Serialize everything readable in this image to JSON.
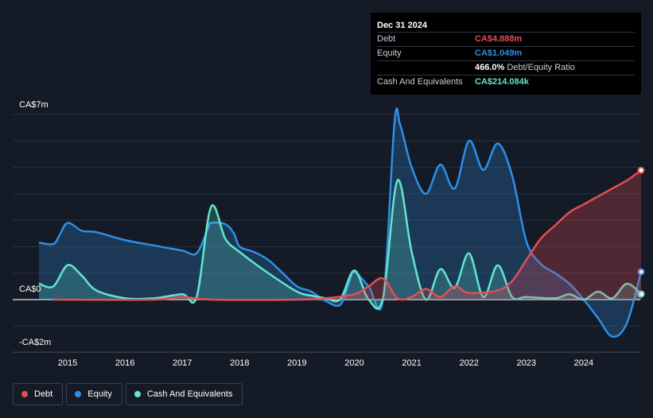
{
  "tooltip": {
    "date": "Dec 31 2024",
    "debt_label": "Debt",
    "debt_value": "CA$4.888m",
    "equity_label": "Equity",
    "equity_value": "CA$1.049m",
    "ratio_value": "466.0%",
    "ratio_label": "Debt/Equity Ratio",
    "cash_label": "Cash And Equivalents",
    "cash_value": "CA$214.084k"
  },
  "colors": {
    "debt": "#e64d55",
    "equity": "#2e8fe6",
    "cash": "#62e6cc",
    "background": "#151b26",
    "grid": "#2a313d"
  },
  "y_axis_labels": [
    "CA$7m",
    "CA$0",
    "-CA$2m"
  ],
  "x_axis_labels": [
    "2015",
    "2016",
    "2017",
    "2018",
    "2019",
    "2020",
    "2021",
    "2022",
    "2023",
    "2024"
  ],
  "legend": [
    {
      "name": "Debt",
      "color": "#e64d55"
    },
    {
      "name": "Equity",
      "color": "#2e8fe6"
    },
    {
      "name": "Cash And Equivalents",
      "color": "#62e6cc"
    }
  ],
  "chart_data": {
    "type": "area",
    "ylim": [
      -2,
      7
    ],
    "xlim": [
      2014.5,
      2025.0
    ],
    "grid": true,
    "legend_position": "bottom-left",
    "series": [
      {
        "name": "Equity",
        "points": [
          [
            2014.5,
            2.15
          ],
          [
            2014.75,
            2.1
          ],
          [
            2014.85,
            2.4
          ],
          [
            2015.0,
            2.9
          ],
          [
            2015.25,
            2.6
          ],
          [
            2015.5,
            2.55
          ],
          [
            2016.0,
            2.25
          ],
          [
            2016.5,
            2.05
          ],
          [
            2017.0,
            1.85
          ],
          [
            2017.25,
            1.75
          ],
          [
            2017.45,
            2.7
          ],
          [
            2017.5,
            2.9
          ],
          [
            2017.75,
            2.85
          ],
          [
            2017.9,
            2.5
          ],
          [
            2018.0,
            2.0
          ],
          [
            2018.25,
            1.8
          ],
          [
            2018.5,
            1.5
          ],
          [
            2018.75,
            1.0
          ],
          [
            2019.0,
            0.5
          ],
          [
            2019.25,
            0.3
          ],
          [
            2019.5,
            -0.05
          ],
          [
            2019.75,
            -0.2
          ],
          [
            2019.9,
            0.6
          ],
          [
            2020.0,
            1.05
          ],
          [
            2020.25,
            0.5
          ],
          [
            2020.5,
            0.0
          ],
          [
            2020.7,
            6.7
          ],
          [
            2020.8,
            6.6
          ],
          [
            2021.0,
            5.0
          ],
          [
            2021.25,
            4.0
          ],
          [
            2021.5,
            5.1
          ],
          [
            2021.75,
            4.2
          ],
          [
            2022.0,
            6.0
          ],
          [
            2022.25,
            4.9
          ],
          [
            2022.5,
            5.9
          ],
          [
            2022.75,
            4.7
          ],
          [
            2023.0,
            2.2
          ],
          [
            2023.25,
            1.35
          ],
          [
            2023.5,
            1.0
          ],
          [
            2023.75,
            0.6
          ],
          [
            2024.0,
            0.0
          ],
          [
            2024.25,
            -0.7
          ],
          [
            2024.5,
            -1.4
          ],
          [
            2024.75,
            -0.9
          ],
          [
            2025.0,
            1.05
          ]
        ]
      },
      {
        "name": "Cash And Equivalents",
        "points": [
          [
            2014.5,
            0.6
          ],
          [
            2014.75,
            0.5
          ],
          [
            2015.0,
            1.3
          ],
          [
            2015.25,
            0.9
          ],
          [
            2015.5,
            0.35
          ],
          [
            2016.0,
            0.05
          ],
          [
            2016.5,
            0.05
          ],
          [
            2017.0,
            0.2
          ],
          [
            2017.25,
            0.1
          ],
          [
            2017.5,
            3.5
          ],
          [
            2017.75,
            2.3
          ],
          [
            2018.0,
            1.8
          ],
          [
            2018.5,
            1.0
          ],
          [
            2019.0,
            0.3
          ],
          [
            2019.25,
            0.15
          ],
          [
            2019.5,
            0.05
          ],
          [
            2019.75,
            0.0
          ],
          [
            2020.0,
            1.1
          ],
          [
            2020.25,
            0.0
          ],
          [
            2020.5,
            0.05
          ],
          [
            2020.75,
            4.5
          ],
          [
            2021.0,
            1.8
          ],
          [
            2021.25,
            0.0
          ],
          [
            2021.5,
            1.15
          ],
          [
            2021.75,
            0.45
          ],
          [
            2022.0,
            1.75
          ],
          [
            2022.25,
            0.1
          ],
          [
            2022.5,
            1.3
          ],
          [
            2022.75,
            0.1
          ],
          [
            2023.0,
            0.1
          ],
          [
            2023.5,
            0.05
          ],
          [
            2023.75,
            0.2
          ],
          [
            2024.0,
            0.0
          ],
          [
            2024.25,
            0.3
          ],
          [
            2024.5,
            0.05
          ],
          [
            2024.75,
            0.6
          ],
          [
            2025.0,
            0.21
          ]
        ]
      },
      {
        "name": "Debt",
        "points": [
          [
            2014.75,
            0.0
          ],
          [
            2016.5,
            0.0
          ],
          [
            2017.0,
            0.1
          ],
          [
            2017.5,
            0.0
          ],
          [
            2019.0,
            0.0
          ],
          [
            2019.5,
            0.05
          ],
          [
            2020.0,
            0.2
          ],
          [
            2020.25,
            0.5
          ],
          [
            2020.5,
            0.8
          ],
          [
            2020.75,
            0.05
          ],
          [
            2021.0,
            0.1
          ],
          [
            2021.25,
            0.4
          ],
          [
            2021.5,
            0.1
          ],
          [
            2021.75,
            0.5
          ],
          [
            2022.0,
            0.25
          ],
          [
            2022.5,
            0.35
          ],
          [
            2022.75,
            0.7
          ],
          [
            2023.0,
            1.5
          ],
          [
            2023.25,
            2.3
          ],
          [
            2023.5,
            2.8
          ],
          [
            2023.75,
            3.3
          ],
          [
            2024.0,
            3.6
          ],
          [
            2024.25,
            3.9
          ],
          [
            2024.5,
            4.2
          ],
          [
            2024.75,
            4.5
          ],
          [
            2025.0,
            4.888
          ]
        ]
      }
    ]
  }
}
